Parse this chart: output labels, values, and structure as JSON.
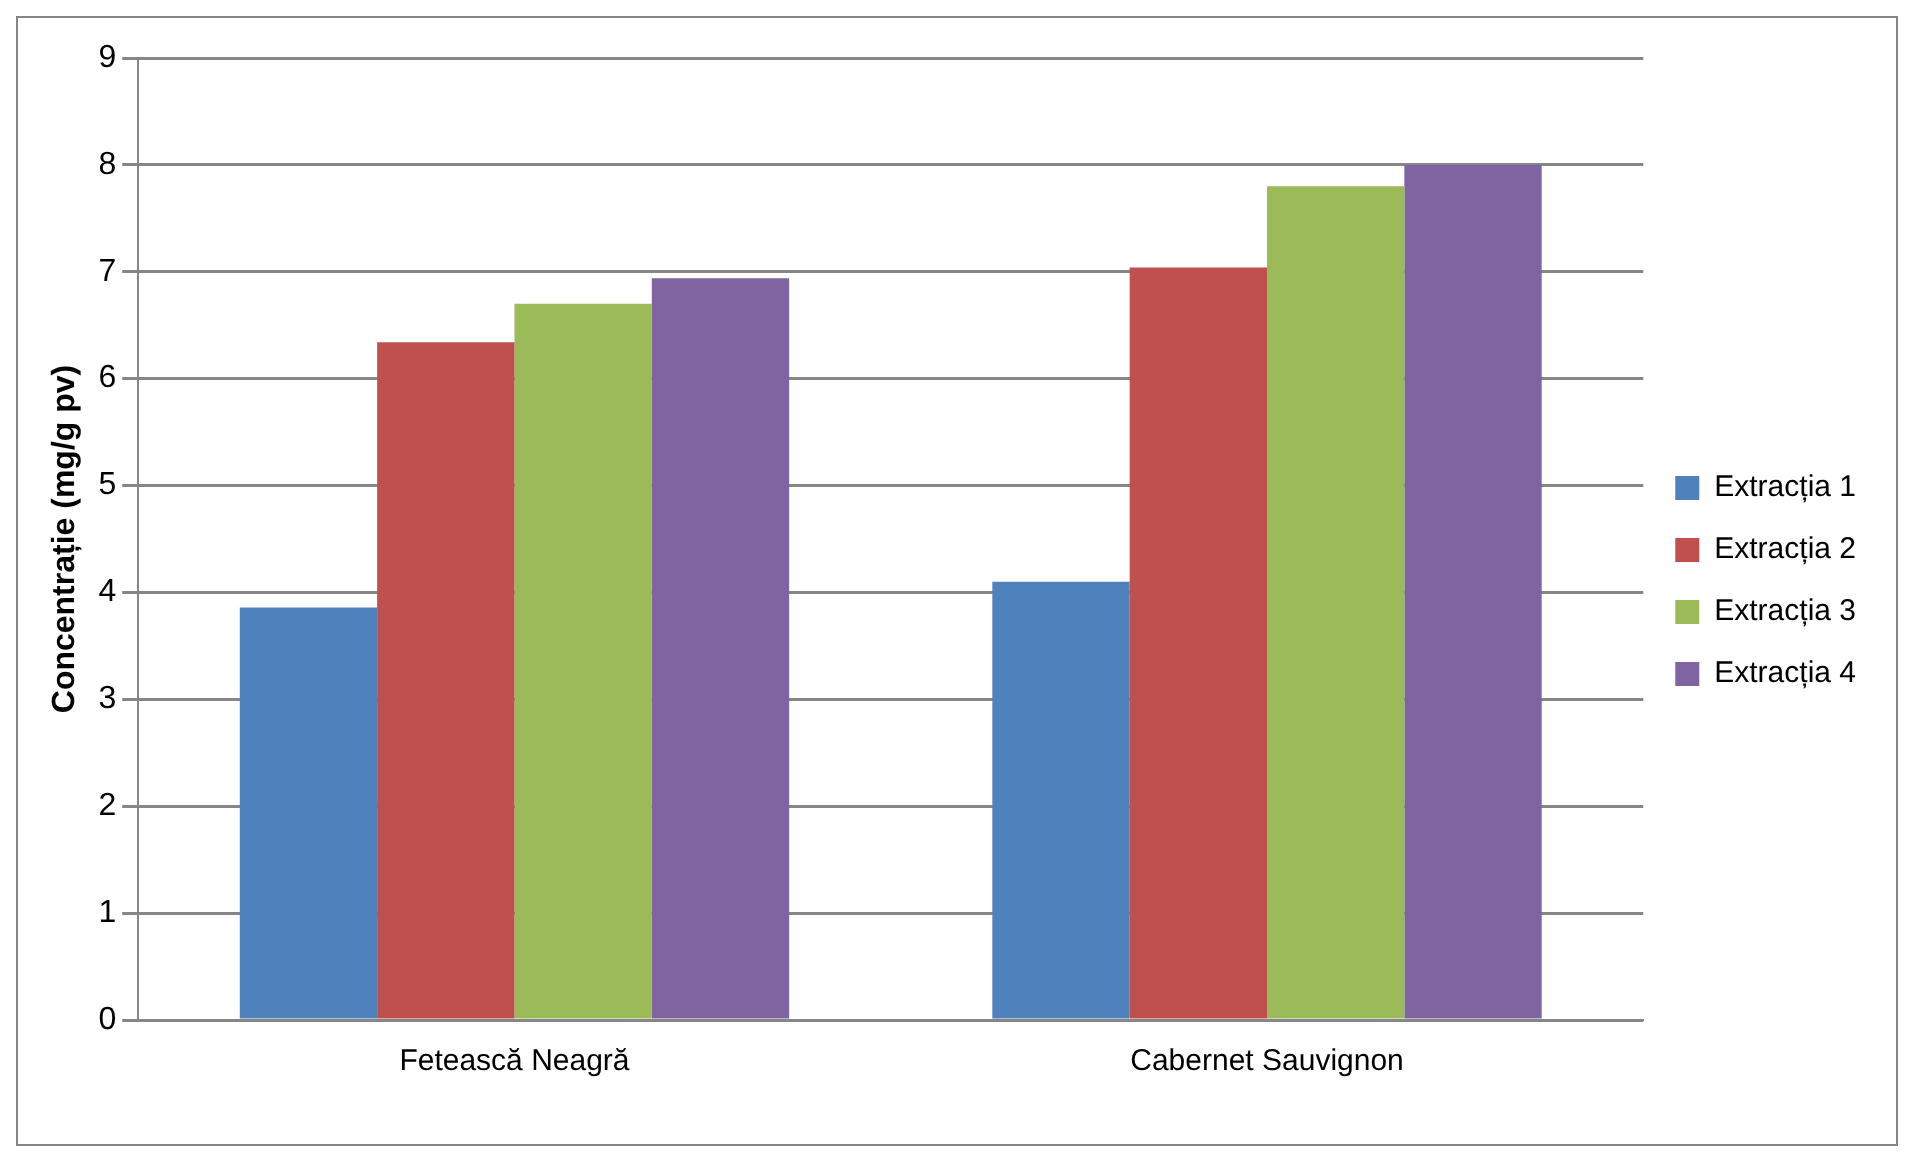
{
  "chart_data": {
    "type": "bar",
    "ylabel": "Concentrație (mg/g pv)",
    "categories": [
      "Fetească Neagră",
      "Cabernet Sauvignon"
    ],
    "series": [
      {
        "name": "Extracția 1",
        "color": "#4f81bd",
        "values": [
          3.86,
          4.1
        ]
      },
      {
        "name": "Extracția 2",
        "color": "#c0504d",
        "values": [
          6.34,
          7.04
        ]
      },
      {
        "name": "Extracția 3",
        "color": "#9bbb59",
        "values": [
          6.7,
          7.8
        ]
      },
      {
        "name": "Extracția 4",
        "color": "#8064a2",
        "values": [
          6.94,
          8.0
        ]
      }
    ],
    "ylim": [
      0,
      9
    ],
    "yticks": [
      0,
      1,
      2,
      3,
      4,
      5,
      6,
      7,
      8,
      9
    ],
    "grid": "y",
    "legend": "right"
  }
}
